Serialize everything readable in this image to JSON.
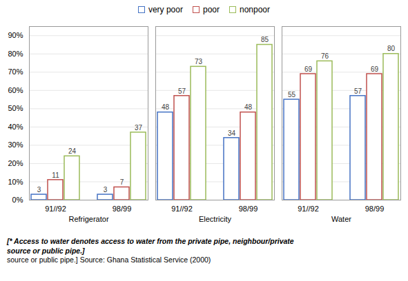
{
  "chart_data": {
    "type": "bar",
    "categories": [
      "Refrigerator",
      "Electricity",
      "Water"
    ],
    "subcategories": [
      "91//92",
      "98/99"
    ],
    "series": [
      {
        "name": "very poor",
        "color": "#4472C4",
        "values": [
          [
            3,
            3
          ],
          [
            48,
            34
          ],
          [
            55,
            57
          ]
        ]
      },
      {
        "name": "poor",
        "color": "#C0504D",
        "values": [
          [
            11,
            7
          ],
          [
            57,
            48
          ],
          [
            69,
            69
          ]
        ]
      },
      {
        "name": "nonpoor",
        "color": "#9BBB59",
        "values": [
          [
            24,
            37
          ],
          [
            73,
            85
          ],
          [
            76,
            80
          ]
        ]
      }
    ],
    "ylim": [
      0,
      95
    ],
    "yticks": [
      {
        "value": 0,
        "label": "0%"
      },
      {
        "value": 10,
        "label": "10%"
      },
      {
        "value": 20,
        "label": "20%"
      },
      {
        "value": 30,
        "label": "30%"
      },
      {
        "value": 40,
        "label": "40%"
      },
      {
        "value": 50,
        "label": "50%"
      },
      {
        "value": 60,
        "label": "60%"
      },
      {
        "value": 70,
        "label": "70%"
      },
      {
        "value": 80,
        "label": "80%"
      },
      {
        "value": 90,
        "label": "90%"
      }
    ],
    "grid": true,
    "legend": "top",
    "data_labels": true,
    "annotations": [
      "[* Access to water denotes access to water from the private pipe, neighbour/private\nsource or public pipe.]",
      "source or public pipe.] Source: Ghana Statistical Service (2000)"
    ]
  }
}
